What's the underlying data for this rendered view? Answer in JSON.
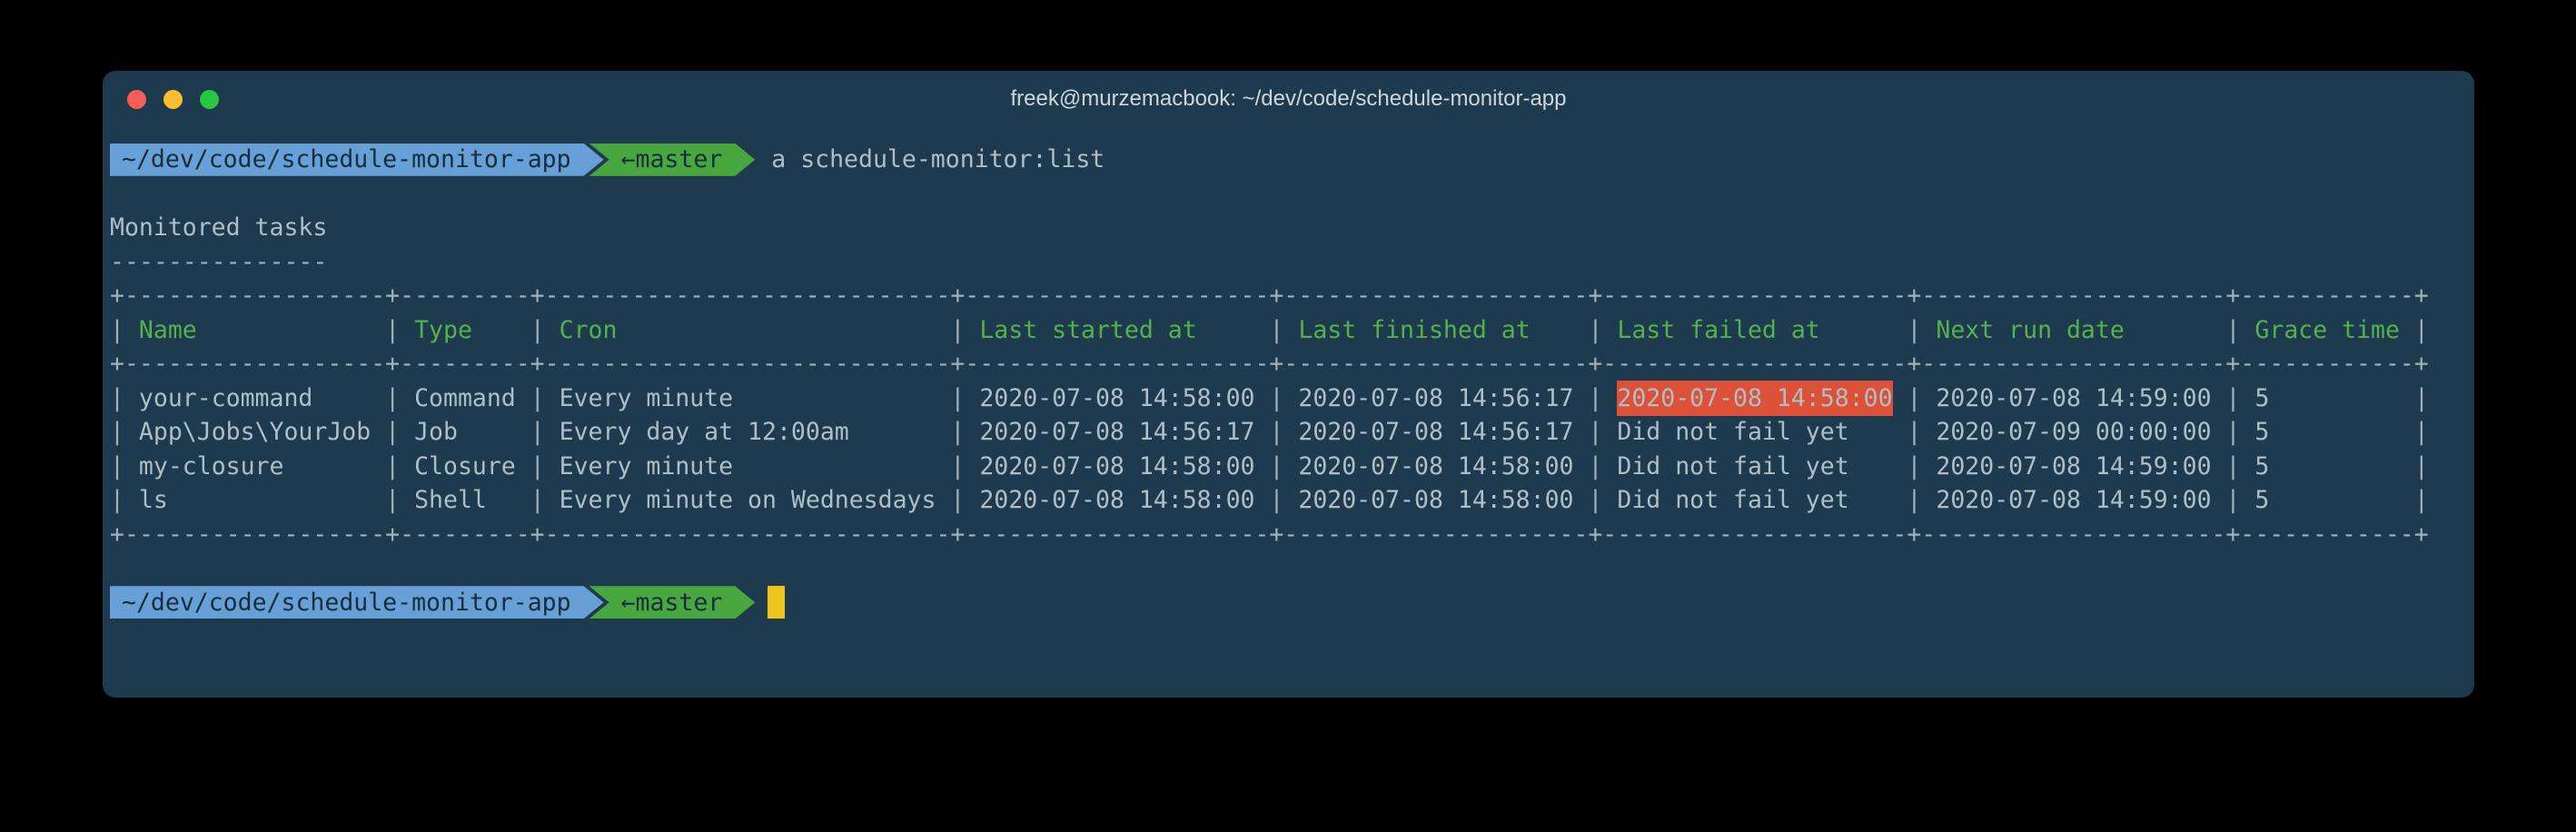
{
  "window": {
    "title": "freek@murzemacbook: ~/dev/code/schedule-monitor-app"
  },
  "prompt": {
    "path": "~/dev/code/schedule-monitor-app",
    "branch": "←master",
    "command": "a schedule-monitor:list"
  },
  "output": {
    "heading": "Monitored tasks",
    "underline": "---------------"
  },
  "table": {
    "headers": [
      "Name",
      "Type",
      "Cron",
      "Last started at",
      "Last finished at",
      "Last failed at",
      "Next run date",
      "Grace time"
    ],
    "rows": [
      [
        "your-command",
        "Command",
        "Every minute",
        "2020-07-08 14:58:00",
        "2020-07-08 14:56:17",
        "2020-07-08 14:58:00",
        "2020-07-08 14:59:00",
        "5"
      ],
      [
        "App\\Jobs\\YourJob",
        "Job",
        "Every day at 12:00am",
        "2020-07-08 14:56:17",
        "2020-07-08 14:56:17",
        "Did not fail yet",
        "2020-07-09 00:00:00",
        "5"
      ],
      [
        "my-closure",
        "Closure",
        "Every minute",
        "2020-07-08 14:58:00",
        "2020-07-08 14:58:00",
        "Did not fail yet",
        "2020-07-08 14:59:00",
        "5"
      ],
      [
        "ls",
        "Shell",
        "Every minute on Wednesdays",
        "2020-07-08 14:58:00",
        "2020-07-08 14:58:00",
        "Did not fail yet",
        "2020-07-08 14:59:00",
        "5"
      ]
    ],
    "failed_cell": {
      "row": 0,
      "col": 5
    }
  },
  "colors": {
    "terminal_background": "#1d3a4e",
    "foreground_text": "#aebfc8",
    "table_border": "#a0b1ba",
    "header_green": "#55b14e",
    "prompt_blue": "#67a0d6",
    "prompt_green": "#48a73f",
    "failed_highlight_red": "#dd5138",
    "cursor_yellow": "#eec31c",
    "traffic_red": "#f55f57",
    "traffic_yellow": "#f9bd2e",
    "traffic_green": "#29c73f"
  }
}
